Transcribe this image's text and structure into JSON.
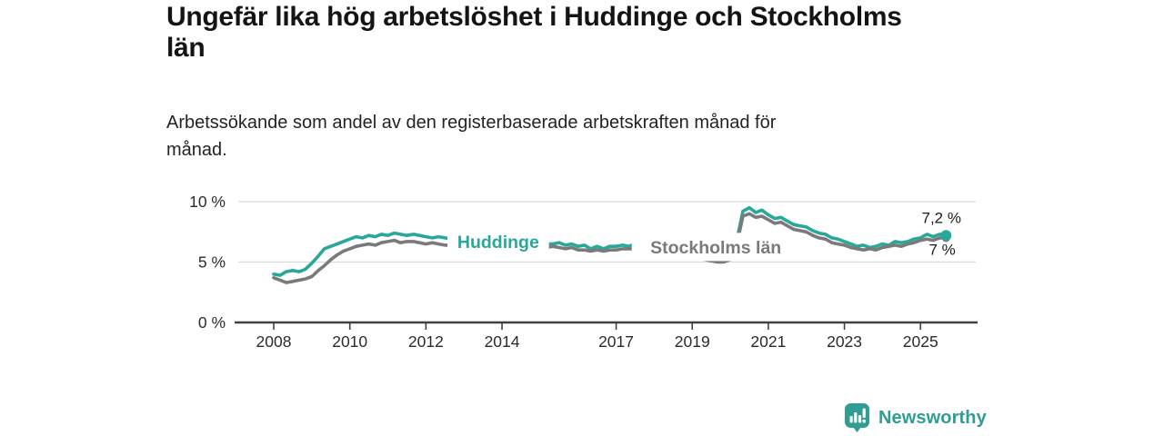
{
  "header": {
    "title_line1": "Ungefär lika hög arbetslöshet i Huddinge och Stockholms",
    "title_line2": "län",
    "subtitle_line1": "Arbetssökande som andel av den registerbaserade arbetskraften månad för",
    "subtitle_line2": "månad."
  },
  "footer": {
    "brand": "Newsworthy",
    "brand_color": "#2F9D94"
  },
  "chart_data": {
    "type": "line",
    "unit": "%",
    "title": "Ungefär lika hög arbetslöshet i Huddinge och Stockholms län",
    "subtitle": "Arbetssökande som andel av den registerbaserade arbetskraften månad för månad.",
    "xlabel": "",
    "ylabel": "",
    "grid": "horizontal",
    "legend_position": "inline-labels",
    "xlim": [
      2006.9,
      2026.5
    ],
    "ylim": [
      0,
      10
    ],
    "x_tick_years": [
      2008,
      2010,
      2012,
      2014,
      2017,
      2019,
      2021,
      2023,
      2025
    ],
    "x_tick_labels": [
      "2008",
      "2010",
      "2012",
      "2014",
      "2017",
      "2019",
      "2021",
      "2023",
      "2025"
    ],
    "y_ticks": [
      {
        "value": 0,
        "label": "0 %"
      },
      {
        "value": 5,
        "label": "5 %"
      },
      {
        "value": 10,
        "label": "10 %"
      }
    ],
    "x": [
      2008.0,
      2008.17,
      2008.33,
      2008.5,
      2008.67,
      2008.83,
      2009.0,
      2009.17,
      2009.33,
      2009.5,
      2009.67,
      2009.83,
      2010.0,
      2010.17,
      2010.33,
      2010.5,
      2010.67,
      2010.83,
      2011.0,
      2011.17,
      2011.33,
      2011.5,
      2011.67,
      2011.83,
      2012.0,
      2012.17,
      2012.33,
      2012.5,
      2012.67,
      2012.83,
      2013.0,
      2013.17,
      2013.33,
      2013.5,
      2013.67,
      2013.83,
      2014.0,
      2014.17,
      2014.33,
      2014.5,
      2014.67,
      2014.83,
      2015.0,
      2015.17,
      2015.33,
      2015.5,
      2015.67,
      2015.83,
      2016.0,
      2016.17,
      2016.33,
      2016.5,
      2016.67,
      2016.83,
      2017.0,
      2017.17,
      2017.33,
      2017.5,
      2017.67,
      2017.83,
      2018.0,
      2018.17,
      2018.33,
      2018.5,
      2018.67,
      2018.83,
      2019.0,
      2019.17,
      2019.33,
      2019.5,
      2019.67,
      2019.83,
      2020.0,
      2020.17,
      2020.33,
      2020.5,
      2020.67,
      2020.83,
      2021.0,
      2021.17,
      2021.33,
      2021.5,
      2021.67,
      2021.83,
      2022.0,
      2022.17,
      2022.33,
      2022.5,
      2022.67,
      2022.83,
      2023.0,
      2023.17,
      2023.33,
      2023.5,
      2023.67,
      2023.83,
      2024.0,
      2024.17,
      2024.33,
      2024.5,
      2024.67,
      2024.83,
      2025.0,
      2025.17,
      2025.33,
      2025.5,
      2025.67
    ],
    "series": [
      {
        "name": "Huddinge",
        "color": "#29A79B",
        "line_width": 3.6,
        "end_value_label": "7,2 %",
        "inline_label": {
          "text": "Huddinge",
          "year": 2013.9,
          "value": 6.7
        },
        "values": [
          4.0,
          3.9,
          4.2,
          4.3,
          4.2,
          4.4,
          4.9,
          5.5,
          6.1,
          6.3,
          6.5,
          6.7,
          6.9,
          7.1,
          7.0,
          7.2,
          7.1,
          7.3,
          7.2,
          7.4,
          7.3,
          7.2,
          7.3,
          7.2,
          7.1,
          7.0,
          7.1,
          7.0,
          6.9,
          6.9,
          6.9,
          6.8,
          6.8,
          6.8,
          6.7,
          6.7,
          6.7,
          6.6,
          6.6,
          6.6,
          6.5,
          6.5,
          6.5,
          6.5,
          6.5,
          6.6,
          6.4,
          6.5,
          6.3,
          6.4,
          6.1,
          6.3,
          6.1,
          6.3,
          6.3,
          6.4,
          6.3,
          6.5,
          6.6,
          6.5,
          6.3,
          6.2,
          6.1,
          6.0,
          5.9,
          5.8,
          5.7,
          5.6,
          5.5,
          5.4,
          5.3,
          5.4,
          5.6,
          6.8,
          9.2,
          9.5,
          9.1,
          9.3,
          8.9,
          8.6,
          8.7,
          8.4,
          8.1,
          8.0,
          7.9,
          7.6,
          7.4,
          7.3,
          7.0,
          6.9,
          6.7,
          6.5,
          6.3,
          6.4,
          6.2,
          6.3,
          6.5,
          6.4,
          6.7,
          6.6,
          6.7,
          6.9,
          7.0,
          7.3,
          7.1,
          7.3,
          7.2
        ]
      },
      {
        "name": "Stockholms län",
        "color": "#7A7A7A",
        "line_width": 3.6,
        "end_value_label": "7 %",
        "inline_label": {
          "text": "Stockholms län",
          "year": 2019.62,
          "value": 6.25
        },
        "values": [
          3.7,
          3.5,
          3.3,
          3.4,
          3.5,
          3.6,
          3.8,
          4.3,
          4.7,
          5.2,
          5.6,
          5.9,
          6.1,
          6.3,
          6.4,
          6.5,
          6.4,
          6.6,
          6.7,
          6.8,
          6.6,
          6.7,
          6.7,
          6.6,
          6.5,
          6.6,
          6.5,
          6.4,
          6.4,
          6.5,
          6.4,
          6.4,
          6.3,
          6.3,
          6.3,
          6.3,
          6.3,
          6.2,
          6.2,
          6.2,
          6.1,
          6.1,
          6.2,
          6.2,
          6.3,
          6.2,
          6.1,
          6.2,
          6.0,
          6.0,
          5.9,
          6.0,
          5.9,
          6.0,
          6.0,
          6.1,
          6.1,
          6.1,
          6.2,
          6.1,
          6.0,
          5.9,
          5.8,
          5.7,
          5.6,
          5.5,
          5.4,
          5.3,
          5.2,
          5.1,
          5.0,
          5.0,
          5.2,
          6.4,
          8.8,
          9.0,
          8.7,
          8.8,
          8.5,
          8.2,
          8.3,
          8.0,
          7.7,
          7.6,
          7.5,
          7.2,
          7.0,
          6.9,
          6.6,
          6.5,
          6.4,
          6.2,
          6.1,
          6.0,
          6.1,
          6.0,
          6.2,
          6.3,
          6.4,
          6.3,
          6.5,
          6.6,
          6.8,
          6.9,
          6.8,
          7.0,
          7.0
        ]
      }
    ],
    "annotations": [
      {
        "text": "7,2 %",
        "year": 2025.55,
        "value": 8.7
      },
      {
        "text": "7 %",
        "year": 2025.57,
        "value": 6.05
      }
    ],
    "colors": {
      "grid": "#D9D9D9",
      "axis": "#404040",
      "tick_text": "#2B2B2B",
      "annotation_text": "#1A1A1A"
    }
  }
}
